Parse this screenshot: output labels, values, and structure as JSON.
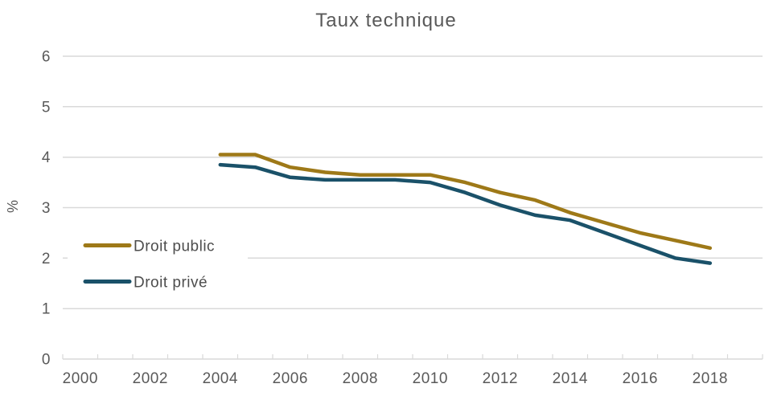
{
  "chart_data": {
    "type": "line",
    "title": "Taux technique",
    "ylabel": "%",
    "xlabel": "",
    "grid": "horizontal",
    "legend_position": "middle-left",
    "ylim": [
      0,
      6
    ],
    "yticks": [
      0,
      1,
      2,
      3,
      4,
      5,
      6
    ],
    "x_axis_category_range": [
      2000,
      2019
    ],
    "xtick_labels": [
      2000,
      2002,
      2004,
      2006,
      2008,
      2010,
      2012,
      2014,
      2016,
      2018
    ],
    "x": [
      2004,
      2005,
      2006,
      2007,
      2008,
      2009,
      2010,
      2011,
      2012,
      2013,
      2014,
      2015,
      2016,
      2017,
      2018
    ],
    "series": [
      {
        "name": "Droit public",
        "color": "#9E7918",
        "values": [
          4.05,
          4.05,
          3.8,
          3.7,
          3.65,
          3.65,
          3.65,
          3.5,
          3.3,
          3.15,
          2.9,
          2.7,
          2.5,
          2.35,
          2.2
        ]
      },
      {
        "name": "Droit privé",
        "color": "#1A5169",
        "values": [
          3.85,
          3.8,
          3.6,
          3.55,
          3.55,
          3.55,
          3.5,
          3.3,
          3.05,
          2.85,
          2.75,
          2.5,
          2.25,
          2.0,
          1.9
        ]
      }
    ]
  },
  "colors": {
    "grid": "#D9D9D9",
    "axis": "#D9D9D9",
    "tick_text": "#595959",
    "title_text": "#595959",
    "legend_text": "#4D4D4D",
    "background": "#FFFFFF"
  }
}
